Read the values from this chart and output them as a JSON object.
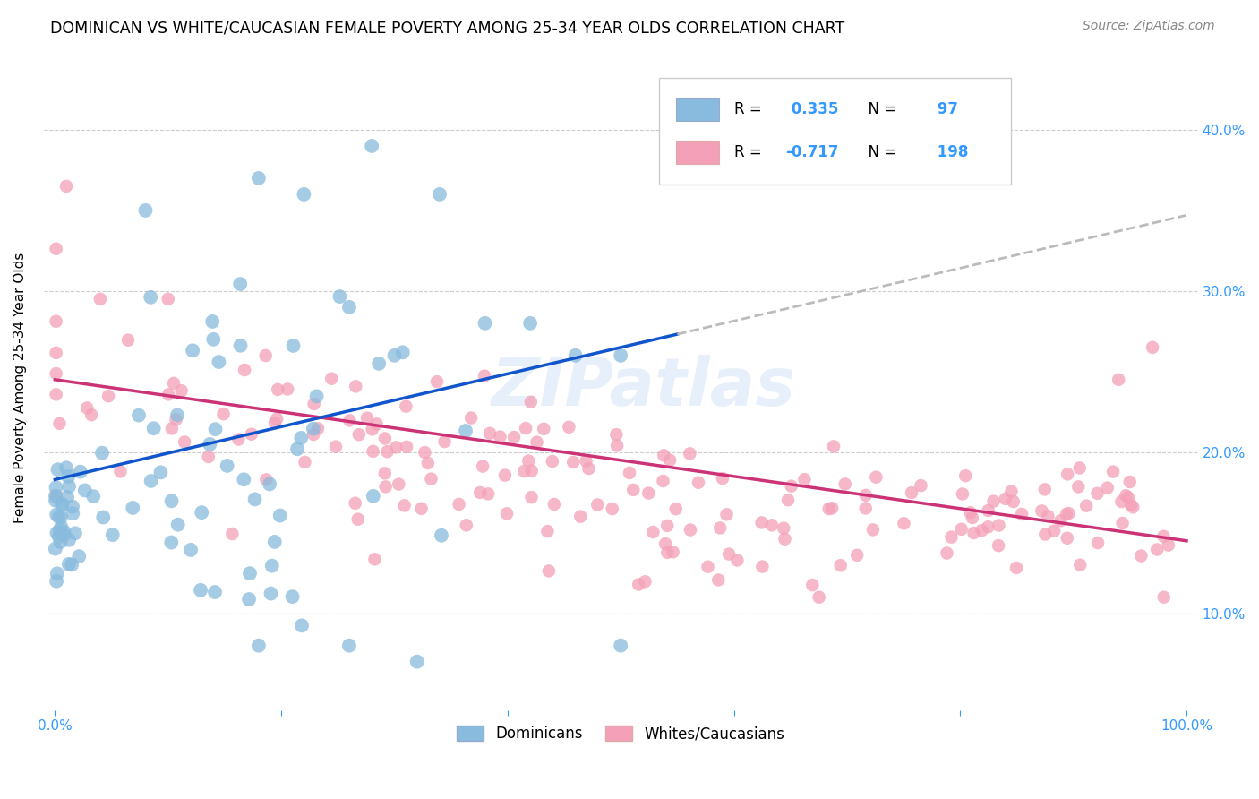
{
  "title": "DOMINICAN VS WHITE/CAUCASIAN FEMALE POVERTY AMONG 25-34 YEAR OLDS CORRELATION CHART",
  "source": "Source: ZipAtlas.com",
  "ylabel": "Female Poverty Among 25-34 Year Olds",
  "legend_label_1": "Dominicans",
  "legend_label_2": "Whites/Caucasians",
  "R1": 0.335,
  "N1": 97,
  "R2": -0.717,
  "N2": 198,
  "color_blue": "#88bbdd",
  "color_pink": "#f4a0b8",
  "color_trendline_blue": "#1155cc",
  "color_trendline_pink": "#cc3377",
  "color_dashed": "#bbbbbb",
  "watermark": "ZIPatlas",
  "title_fontsize": 12.5,
  "source_fontsize": 10,
  "seed": 7
}
